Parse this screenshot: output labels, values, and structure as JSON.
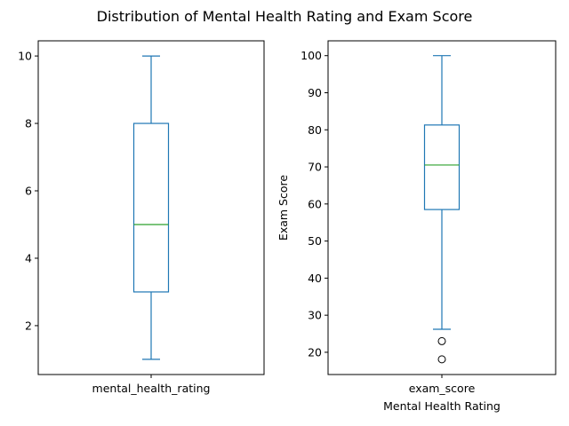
{
  "colors": {
    "box": "#1f77b4",
    "median": "#2ca02c",
    "axes": "#000000",
    "flier": "#000000"
  },
  "chart_data": {
    "title": "Distribution of Mental Health Rating and Exam Score",
    "charts": [
      {
        "type": "box",
        "category": "mental_health_rating",
        "xlabel": "",
        "ylabel": "",
        "ylim": [
          0.55,
          10.45
        ],
        "yticks": [
          2,
          4,
          6,
          8,
          10
        ],
        "stats": {
          "whisker_low": 1,
          "q1": 3,
          "median": 5,
          "q3": 8,
          "whisker_high": 10
        },
        "outliers": []
      },
      {
        "type": "box",
        "category": "exam_score",
        "xlabel": "Mental Health Rating",
        "ylabel": "Exam Score",
        "ylim": [
          14.0,
          104.0
        ],
        "yticks": [
          20,
          30,
          40,
          50,
          60,
          70,
          80,
          90,
          100
        ],
        "stats": {
          "whisker_low": 26.2,
          "q1": 58.5,
          "median": 70.5,
          "q3": 81.3,
          "whisker_high": 100
        },
        "outliers": [
          23.0,
          18.1
        ]
      }
    ]
  }
}
